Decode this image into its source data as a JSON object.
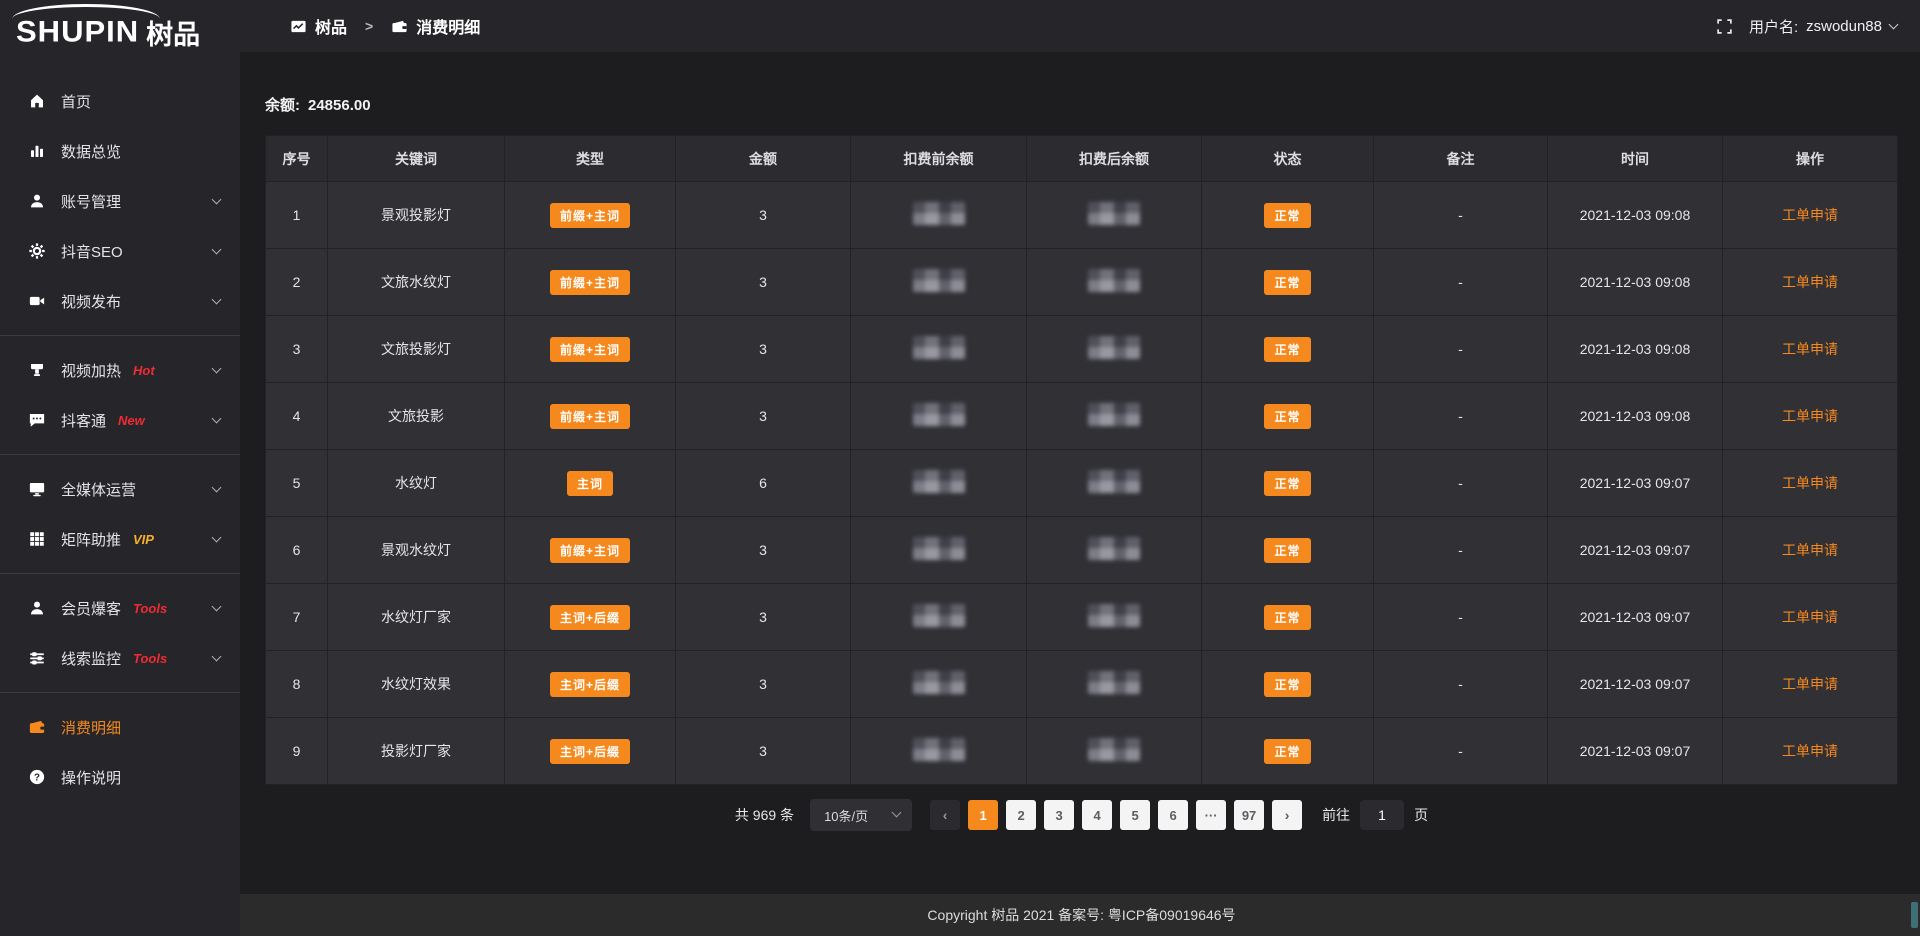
{
  "colors": {
    "accent": "#f5891e",
    "red": "#ef2b33",
    "gold": "#f7b02b",
    "sidebar_bg": "#26262a",
    "cell_bg": "#303035",
    "page_bg": "#1d1d20"
  },
  "app": {
    "logo_en": "SHUPIN",
    "logo_cn": "树品"
  },
  "topbar": {
    "breadcrumb": {
      "root": "树品",
      "root_icon": "chart-doc-icon",
      "separator": ">",
      "current": "消费明细",
      "current_icon": "wallet-icon"
    },
    "fullscreen_icon": "fullscreen-icon",
    "username_label": "用户名:",
    "username": "zswodun88"
  },
  "sidebar": {
    "sections": [
      {
        "items": [
          {
            "key": "home",
            "label": "首页",
            "icon": "home-icon",
            "expandable": false
          },
          {
            "key": "data-overview",
            "label": "数据总览",
            "icon": "bar-chart-icon",
            "expandable": false
          },
          {
            "key": "account-manage",
            "label": "账号管理",
            "icon": "user-icon",
            "expandable": true
          },
          {
            "key": "douyin-seo",
            "label": "抖音SEO",
            "icon": "gear-icon",
            "expandable": true
          },
          {
            "key": "video-publish",
            "label": "视频发布",
            "icon": "video-icon",
            "expandable": true
          }
        ]
      },
      {
        "items": [
          {
            "key": "video-heating",
            "label": "视频加热",
            "icon": "heat-icon",
            "badge": "Hot",
            "badge_color": "#ef2b33",
            "expandable": true
          },
          {
            "key": "doukertong",
            "label": "抖客通",
            "icon": "chat-icon",
            "badge": "New",
            "badge_color": "#ef2b33",
            "expandable": true
          }
        ]
      },
      {
        "items": [
          {
            "key": "media-operation",
            "label": "全媒体运营",
            "icon": "monitor-icon",
            "expandable": true
          },
          {
            "key": "matrix-boost",
            "label": "矩阵助推",
            "icon": "grid-icon",
            "badge": "VIP",
            "badge_color": "#f7b02b",
            "expandable": true
          }
        ]
      },
      {
        "items": [
          {
            "key": "member-burst",
            "label": "会员爆客",
            "icon": "member-icon",
            "badge": "Tools",
            "badge_color": "#ef2b33",
            "expandable": true
          },
          {
            "key": "clue-monitor",
            "label": "线索监控",
            "icon": "sliders-icon",
            "badge": "Tools",
            "badge_color": "#ef2b33",
            "expandable": true
          }
        ]
      },
      {
        "items": [
          {
            "key": "consume-detail",
            "label": "消费明细",
            "icon": "wallet-icon",
            "active": true,
            "expandable": false
          },
          {
            "key": "help",
            "label": "操作说明",
            "icon": "question-icon",
            "expandable": false
          }
        ]
      }
    ]
  },
  "main": {
    "balance_label": "余额:",
    "balance_value": "24856.00",
    "table": {
      "headers": [
        "序号",
        "关键词",
        "类型",
        "金额",
        "扣费前余额",
        "扣费后余额",
        "状态",
        "备注",
        "时间",
        "操作"
      ],
      "masked_columns": [
        "扣费前余额",
        "扣费后余额"
      ],
      "rows": [
        {
          "no": "1",
          "keyword": "景观投影灯",
          "type": "前缀+主词",
          "amount": "3",
          "status": "正常",
          "note": "-",
          "time": "2021-12-03 09:08",
          "action": "工单申请"
        },
        {
          "no": "2",
          "keyword": "文旅水纹灯",
          "type": "前缀+主词",
          "amount": "3",
          "status": "正常",
          "note": "-",
          "time": "2021-12-03 09:08",
          "action": "工单申请"
        },
        {
          "no": "3",
          "keyword": "文旅投影灯",
          "type": "前缀+主词",
          "amount": "3",
          "status": "正常",
          "note": "-",
          "time": "2021-12-03 09:08",
          "action": "工单申请"
        },
        {
          "no": "4",
          "keyword": "文旅投影",
          "type": "前缀+主词",
          "amount": "3",
          "status": "正常",
          "note": "-",
          "time": "2021-12-03 09:08",
          "action": "工单申请"
        },
        {
          "no": "5",
          "keyword": "水纹灯",
          "type": "主词",
          "amount": "6",
          "status": "正常",
          "note": "-",
          "time": "2021-12-03 09:07",
          "action": "工单申请"
        },
        {
          "no": "6",
          "keyword": "景观水纹灯",
          "type": "前缀+主词",
          "amount": "3",
          "status": "正常",
          "note": "-",
          "time": "2021-12-03 09:07",
          "action": "工单申请"
        },
        {
          "no": "7",
          "keyword": "水纹灯厂家",
          "type": "主词+后缀",
          "amount": "3",
          "status": "正常",
          "note": "-",
          "time": "2021-12-03 09:07",
          "action": "工单申请"
        },
        {
          "no": "8",
          "keyword": "水纹灯效果",
          "type": "主词+后缀",
          "amount": "3",
          "status": "正常",
          "note": "-",
          "time": "2021-12-03 09:07",
          "action": "工单申请"
        },
        {
          "no": "9",
          "keyword": "投影灯厂家",
          "type": "主词+后缀",
          "amount": "3",
          "status": "正常",
          "note": "-",
          "time": "2021-12-03 09:07",
          "action": "工单申请"
        }
      ]
    }
  },
  "pagination": {
    "total": "共 969 条",
    "page_size": "10条/页",
    "pages": [
      "1",
      "2",
      "3",
      "4",
      "5",
      "6",
      "···",
      "97"
    ],
    "active_page": "1",
    "prev_icon": "chevron-left-icon",
    "next_icon": "chevron-right-icon",
    "goto_label": "前往",
    "goto_value": "1",
    "goto_unit": "页"
  },
  "footer": {
    "copyright": "Copyright 树品 2021 备案号: 粤ICP备09019646号"
  }
}
